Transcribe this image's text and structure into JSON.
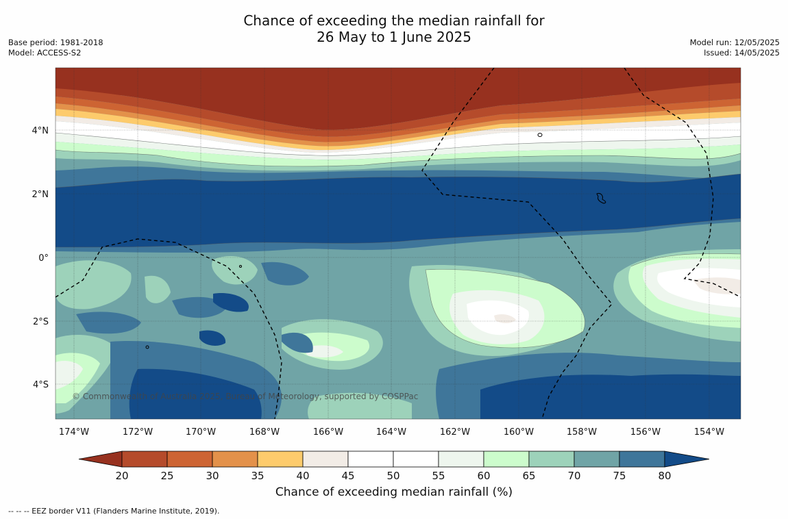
{
  "header": {
    "title_line1": "Chance of exceeding the median rainfall for",
    "title_line2": "26 May to 1 June 2025",
    "base_period": "Base period: 1981-2018",
    "model": "Model: ACCESS-S2",
    "model_run": "Model run: 12/05/2025",
    "issued": "Issued: 14/05/2025"
  },
  "map": {
    "copyright": "© Commonwealth of Australia 2025, Bureau of Meteorology, supported by COSPPac",
    "lon_labels": [
      "174°W",
      "172°W",
      "170°W",
      "168°W",
      "166°W",
      "164°W",
      "162°W",
      "160°W",
      "158°W",
      "156°W",
      "154°W"
    ],
    "lat_labels": [
      "4°N",
      "2°N",
      "0°",
      "2°S",
      "4°S"
    ]
  },
  "colorbar": {
    "title": "Chance of exceeding median rainfall (%)",
    "ticks": [
      "20",
      "25",
      "30",
      "35",
      "40",
      "45",
      "50",
      "55",
      "60",
      "65",
      "70",
      "75",
      "80"
    ],
    "colors": [
      "#97311f",
      "#b54b2b",
      "#cd6433",
      "#e3914a",
      "#fdcb6c",
      "#f2ece6",
      "#ffffff",
      "#ffffff",
      "#eef6ee",
      "#ccfccc",
      "#9dd2ba",
      "#70a4a6",
      "#3f769a",
      "#134b88"
    ]
  },
  "footnote": "--  --  -- EEZ border V11 (Flanders Marine Institute, 2019)."
}
